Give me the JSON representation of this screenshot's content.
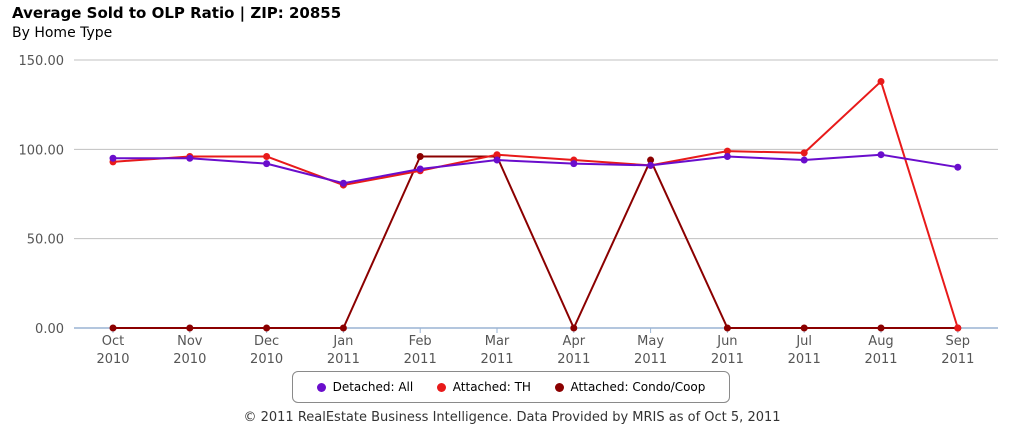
{
  "chart_data": {
    "type": "line",
    "title": "Average Sold to OLP Ratio | ZIP: 20855",
    "subtitle": "By Home Type",
    "categories": [
      [
        "Oct",
        "2010"
      ],
      [
        "Nov",
        "2010"
      ],
      [
        "Dec",
        "2010"
      ],
      [
        "Jan",
        "2011"
      ],
      [
        "Feb",
        "2011"
      ],
      [
        "Mar",
        "2011"
      ],
      [
        "Apr",
        "2011"
      ],
      [
        "May",
        "2011"
      ],
      [
        "Jun",
        "2011"
      ],
      [
        "Jul",
        "2011"
      ],
      [
        "Aug",
        "2011"
      ],
      [
        "Sep",
        "2011"
      ]
    ],
    "ylim": [
      0,
      150
    ],
    "yticks": [
      "0.00",
      "50.00",
      "100.00",
      "150.00"
    ],
    "ytick_values": [
      0,
      50,
      100,
      150
    ],
    "grid": true,
    "legend_position": "bottom",
    "series": [
      {
        "name": "Detached: All",
        "color": "#6a0dcc",
        "values": [
          95,
          95,
          92,
          81,
          89,
          94,
          92,
          91,
          96,
          94,
          97,
          90
        ]
      },
      {
        "name": "Attached: TH",
        "color": "#e81a1a",
        "values": [
          93,
          96,
          96,
          80,
          88,
          97,
          94,
          91,
          99,
          98,
          138,
          0
        ]
      },
      {
        "name": "Attached: Condo/Coop",
        "color": "#8b0000",
        "values": [
          0,
          0,
          0,
          0,
          96,
          96,
          0,
          94,
          0,
          0,
          0,
          0
        ]
      }
    ]
  },
  "footer": "© 2011 RealEstate Business Intelligence. Data Provided by MRIS as of Oct 5, 2011"
}
